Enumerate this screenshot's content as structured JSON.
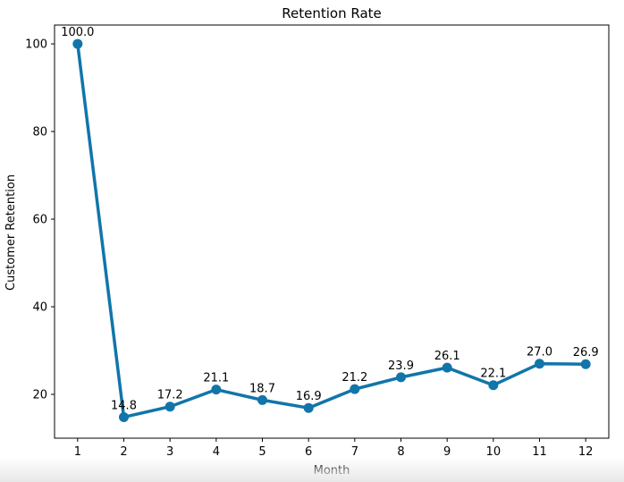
{
  "chart_data": {
    "type": "line",
    "title": "Retention Rate",
    "xlabel": "Month",
    "ylabel": "Customer Retention",
    "x": [
      1,
      2,
      3,
      4,
      5,
      6,
      7,
      8,
      9,
      10,
      11,
      12
    ],
    "series": [
      {
        "values": [
          100.0,
          14.8,
          17.2,
          21.1,
          18.7,
          16.9,
          21.2,
          23.9,
          26.1,
          22.1,
          27.0,
          26.9
        ],
        "color": "#1175aa",
        "marker": "circle"
      }
    ],
    "data_labels": [
      "100.0",
      "14.8",
      "17.2",
      "21.1",
      "18.7",
      "16.9",
      "21.2",
      "23.9",
      "26.1",
      "22.1",
      "27.0",
      "26.9"
    ],
    "xticks": [
      1,
      2,
      3,
      4,
      5,
      6,
      7,
      8,
      9,
      10,
      11,
      12
    ],
    "yticks": [
      20,
      40,
      60,
      80,
      100
    ],
    "xlim": [
      0.5,
      12.5
    ],
    "ylim": [
      10.0,
      104.3
    ],
    "grid": false,
    "legend": "none"
  }
}
